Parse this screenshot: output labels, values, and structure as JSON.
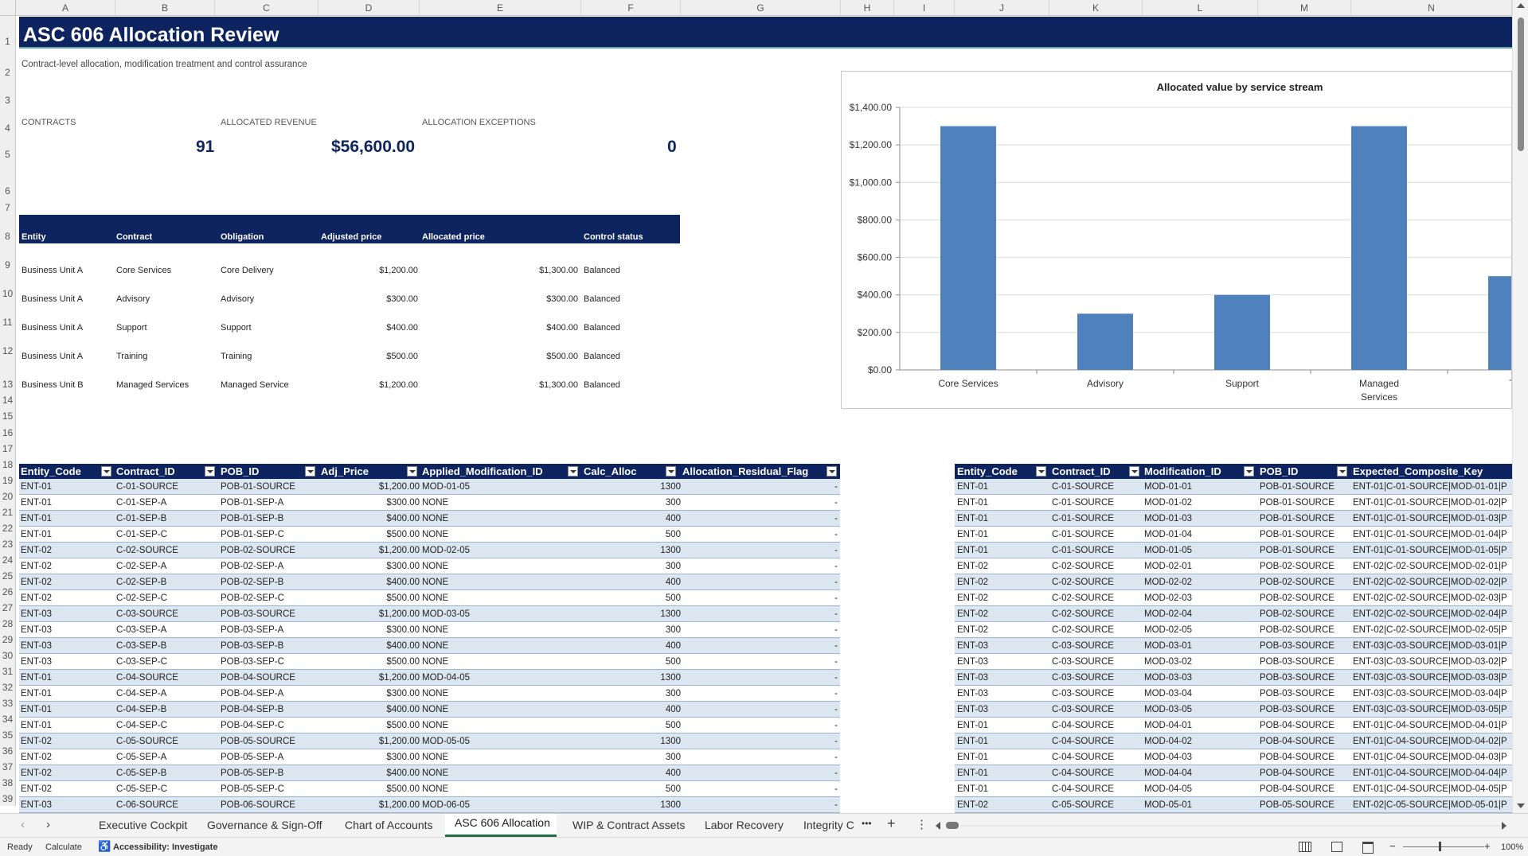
{
  "columns": [
    "A",
    "B",
    "C",
    "D",
    "E",
    "F",
    "G",
    "H",
    "I",
    "J",
    "K",
    "L",
    "M",
    "N"
  ],
  "rows": [
    "1",
    "2",
    "3",
    "4",
    "5",
    "6",
    "7",
    "8",
    "9",
    "10",
    "11",
    "12",
    "13",
    "14",
    "15",
    "16",
    "17",
    "18",
    "19",
    "20",
    "21",
    "22",
    "23",
    "24",
    "25",
    "26",
    "27",
    "28",
    "29",
    "30",
    "31",
    "32",
    "33",
    "34",
    "35",
    "36",
    "37",
    "38",
    "39"
  ],
  "title": "ASC 606 Allocation Review",
  "subtitle": "Contract-level allocation, modification treatment and control assurance",
  "kpis": {
    "contracts_label": "CONTRACTS",
    "contracts_value": "91",
    "revenue_label": "ALLOCATED REVENUE",
    "revenue_value": "$56,600.00",
    "exceptions_label": "ALLOCATION EXCEPTIONS",
    "exceptions_value": "0"
  },
  "summary_table": {
    "headers": [
      "Entity",
      "Contract",
      "Obligation",
      "Adjusted price",
      "Allocated price",
      "Control status"
    ],
    "rows": [
      [
        "Business Unit A",
        "Core Services",
        "Core Delivery",
        "$1,200.00",
        "$1,300.00",
        "Balanced"
      ],
      [
        "Business Unit A",
        "Advisory",
        "Advisory",
        "$300.00",
        "$300.00",
        "Balanced"
      ],
      [
        "Business Unit A",
        "Support",
        "Support",
        "$400.00",
        "$400.00",
        "Balanced"
      ],
      [
        "Business Unit A",
        "Training",
        "Training",
        "$500.00",
        "$500.00",
        "Balanced"
      ],
      [
        "Business Unit B",
        "Managed Services",
        "Managed Service",
        "$1,200.00",
        "$1,300.00",
        "Balanced"
      ]
    ]
  },
  "chart_data": {
    "type": "bar",
    "title": "Allocated value by service stream",
    "categories": [
      "Core Services",
      "Advisory",
      "Support",
      "Managed Services",
      "Training"
    ],
    "category_labels_visible": [
      "Core Services",
      "Advisory",
      "Support",
      "Managed Services",
      "Tra"
    ],
    "values": [
      1300,
      300,
      400,
      1300,
      500
    ],
    "ylim": [
      0,
      1400
    ],
    "yticks": [
      "$0.00",
      "$200.00",
      "$400.00",
      "$600.00",
      "$800.00",
      "$1,000.00",
      "$1,200.00",
      "$1,400.00"
    ],
    "xlabel": "",
    "ylabel": "",
    "grid": true,
    "bar_color": "#4f81bd"
  },
  "left_table": {
    "headers": [
      "Entity_Code",
      "Contract_ID",
      "POB_ID",
      "Adj_Price",
      "Applied_Modification_ID",
      "Calc_Alloc",
      "Allocation_Residual_Flag"
    ],
    "rows": [
      [
        "ENT-01",
        "C-01-SOURCE",
        "POB-01-SOURCE",
        "$1,200.00",
        "MOD-01-05",
        "1300",
        "-"
      ],
      [
        "ENT-01",
        "C-01-SEP-A",
        "POB-01-SEP-A",
        "$300.00",
        "NONE",
        "300",
        "-"
      ],
      [
        "ENT-01",
        "C-01-SEP-B",
        "POB-01-SEP-B",
        "$400.00",
        "NONE",
        "400",
        "-"
      ],
      [
        "ENT-01",
        "C-01-SEP-C",
        "POB-01-SEP-C",
        "$500.00",
        "NONE",
        "500",
        "-"
      ],
      [
        "ENT-02",
        "C-02-SOURCE",
        "POB-02-SOURCE",
        "$1,200.00",
        "MOD-02-05",
        "1300",
        "-"
      ],
      [
        "ENT-02",
        "C-02-SEP-A",
        "POB-02-SEP-A",
        "$300.00",
        "NONE",
        "300",
        "-"
      ],
      [
        "ENT-02",
        "C-02-SEP-B",
        "POB-02-SEP-B",
        "$400.00",
        "NONE",
        "400",
        "-"
      ],
      [
        "ENT-02",
        "C-02-SEP-C",
        "POB-02-SEP-C",
        "$500.00",
        "NONE",
        "500",
        "-"
      ],
      [
        "ENT-03",
        "C-03-SOURCE",
        "POB-03-SOURCE",
        "$1,200.00",
        "MOD-03-05",
        "1300",
        "-"
      ],
      [
        "ENT-03",
        "C-03-SEP-A",
        "POB-03-SEP-A",
        "$300.00",
        "NONE",
        "300",
        "-"
      ],
      [
        "ENT-03",
        "C-03-SEP-B",
        "POB-03-SEP-B",
        "$400.00",
        "NONE",
        "400",
        "-"
      ],
      [
        "ENT-03",
        "C-03-SEP-C",
        "POB-03-SEP-C",
        "$500.00",
        "NONE",
        "500",
        "-"
      ],
      [
        "ENT-01",
        "C-04-SOURCE",
        "POB-04-SOURCE",
        "$1,200.00",
        "MOD-04-05",
        "1300",
        "-"
      ],
      [
        "ENT-01",
        "C-04-SEP-A",
        "POB-04-SEP-A",
        "$300.00",
        "NONE",
        "300",
        "-"
      ],
      [
        "ENT-01",
        "C-04-SEP-B",
        "POB-04-SEP-B",
        "$400.00",
        "NONE",
        "400",
        "-"
      ],
      [
        "ENT-01",
        "C-04-SEP-C",
        "POB-04-SEP-C",
        "$500.00",
        "NONE",
        "500",
        "-"
      ],
      [
        "ENT-02",
        "C-05-SOURCE",
        "POB-05-SOURCE",
        "$1,200.00",
        "MOD-05-05",
        "1300",
        "-"
      ],
      [
        "ENT-02",
        "C-05-SEP-A",
        "POB-05-SEP-A",
        "$300.00",
        "NONE",
        "300",
        "-"
      ],
      [
        "ENT-02",
        "C-05-SEP-B",
        "POB-05-SEP-B",
        "$400.00",
        "NONE",
        "400",
        "-"
      ],
      [
        "ENT-02",
        "C-05-SEP-C",
        "POB-05-SEP-C",
        "$500.00",
        "NONE",
        "500",
        "-"
      ],
      [
        "ENT-03",
        "C-06-SOURCE",
        "POB-06-SOURCE",
        "$1,200.00",
        "MOD-06-05",
        "1300",
        "-"
      ]
    ]
  },
  "right_table": {
    "headers": [
      "Entity_Code",
      "Contract_ID",
      "Modification_ID",
      "POB_ID",
      "Expected_Composite_Key"
    ],
    "rows": [
      [
        "ENT-01",
        "C-01-SOURCE",
        "MOD-01-01",
        "POB-01-SOURCE",
        "ENT-01|C-01-SOURCE|MOD-01-01|P"
      ],
      [
        "ENT-01",
        "C-01-SOURCE",
        "MOD-01-02",
        "POB-01-SOURCE",
        "ENT-01|C-01-SOURCE|MOD-01-02|P"
      ],
      [
        "ENT-01",
        "C-01-SOURCE",
        "MOD-01-03",
        "POB-01-SOURCE",
        "ENT-01|C-01-SOURCE|MOD-01-03|P"
      ],
      [
        "ENT-01",
        "C-01-SOURCE",
        "MOD-01-04",
        "POB-01-SOURCE",
        "ENT-01|C-01-SOURCE|MOD-01-04|P"
      ],
      [
        "ENT-01",
        "C-01-SOURCE",
        "MOD-01-05",
        "POB-01-SOURCE",
        "ENT-01|C-01-SOURCE|MOD-01-05|P"
      ],
      [
        "ENT-02",
        "C-02-SOURCE",
        "MOD-02-01",
        "POB-02-SOURCE",
        "ENT-02|C-02-SOURCE|MOD-02-01|P"
      ],
      [
        "ENT-02",
        "C-02-SOURCE",
        "MOD-02-02",
        "POB-02-SOURCE",
        "ENT-02|C-02-SOURCE|MOD-02-02|P"
      ],
      [
        "ENT-02",
        "C-02-SOURCE",
        "MOD-02-03",
        "POB-02-SOURCE",
        "ENT-02|C-02-SOURCE|MOD-02-03|P"
      ],
      [
        "ENT-02",
        "C-02-SOURCE",
        "MOD-02-04",
        "POB-02-SOURCE",
        "ENT-02|C-02-SOURCE|MOD-02-04|P"
      ],
      [
        "ENT-02",
        "C-02-SOURCE",
        "MOD-02-05",
        "POB-02-SOURCE",
        "ENT-02|C-02-SOURCE|MOD-02-05|P"
      ],
      [
        "ENT-03",
        "C-03-SOURCE",
        "MOD-03-01",
        "POB-03-SOURCE",
        "ENT-03|C-03-SOURCE|MOD-03-01|P"
      ],
      [
        "ENT-03",
        "C-03-SOURCE",
        "MOD-03-02",
        "POB-03-SOURCE",
        "ENT-03|C-03-SOURCE|MOD-03-02|P"
      ],
      [
        "ENT-03",
        "C-03-SOURCE",
        "MOD-03-03",
        "POB-03-SOURCE",
        "ENT-03|C-03-SOURCE|MOD-03-03|P"
      ],
      [
        "ENT-03",
        "C-03-SOURCE",
        "MOD-03-04",
        "POB-03-SOURCE",
        "ENT-03|C-03-SOURCE|MOD-03-04|P"
      ],
      [
        "ENT-03",
        "C-03-SOURCE",
        "MOD-03-05",
        "POB-03-SOURCE",
        "ENT-03|C-03-SOURCE|MOD-03-05|P"
      ],
      [
        "ENT-01",
        "C-04-SOURCE",
        "MOD-04-01",
        "POB-04-SOURCE",
        "ENT-01|C-04-SOURCE|MOD-04-01|P"
      ],
      [
        "ENT-01",
        "C-04-SOURCE",
        "MOD-04-02",
        "POB-04-SOURCE",
        "ENT-01|C-04-SOURCE|MOD-04-02|P"
      ],
      [
        "ENT-01",
        "C-04-SOURCE",
        "MOD-04-03",
        "POB-04-SOURCE",
        "ENT-01|C-04-SOURCE|MOD-04-03|P"
      ],
      [
        "ENT-01",
        "C-04-SOURCE",
        "MOD-04-04",
        "POB-04-SOURCE",
        "ENT-01|C-04-SOURCE|MOD-04-04|P"
      ],
      [
        "ENT-01",
        "C-04-SOURCE",
        "MOD-04-05",
        "POB-04-SOURCE",
        "ENT-01|C-04-SOURCE|MOD-04-05|P"
      ],
      [
        "ENT-02",
        "C-05-SOURCE",
        "MOD-05-01",
        "POB-05-SOURCE",
        "ENT-02|C-05-SOURCE|MOD-05-01|P"
      ]
    ]
  },
  "sheet_tabs": [
    "Executive Cockpit",
    "Governance & Sign-Off",
    "Chart of Accounts",
    "ASC 606 Allocation",
    "WIP & Contract Assets",
    "Labor Recovery",
    "Integrity C"
  ],
  "active_tab": "ASC 606 Allocation",
  "tab_more": "•••",
  "tab_add": "+",
  "tab_menu": "⋮",
  "status": {
    "ready": "Ready",
    "calculate": "Calculate",
    "accessibility": "Accessibility: Investigate",
    "zoom": "100%",
    "zoom_minus": "−",
    "zoom_plus": "+"
  },
  "accent": "#0d2461",
  "table_band": "#dce6f1"
}
